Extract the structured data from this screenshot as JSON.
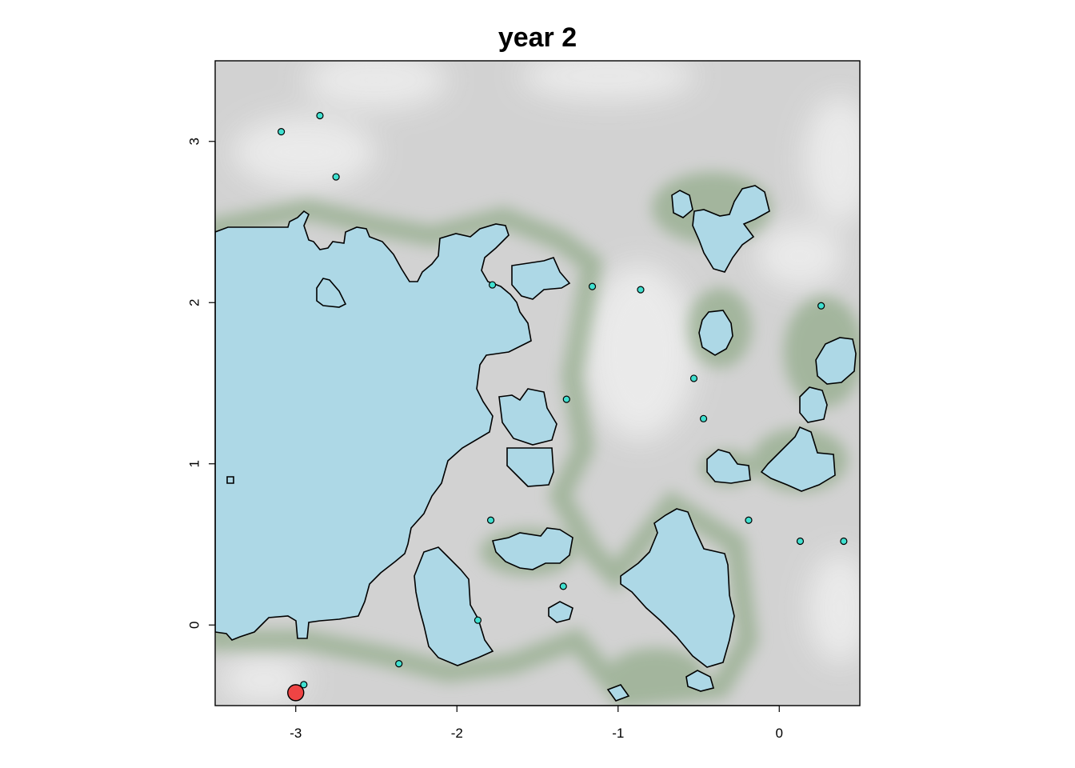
{
  "chart_data": {
    "type": "scatter",
    "title": "year 2",
    "xlabel": "",
    "ylabel": "",
    "xlim": [
      -3.5,
      0.5
    ],
    "ylim": [
      -0.5,
      3.5
    ],
    "xticks": [
      -3,
      -2,
      -1,
      0
    ],
    "xtick_labels": [
      "-3",
      "-2",
      "-1",
      "0"
    ],
    "yticks": [
      0,
      1,
      2,
      3
    ],
    "ytick_labels": [
      "0",
      "1",
      "2",
      "3"
    ],
    "grid": false,
    "legend": "none",
    "colors": {
      "background_raster": "#d0d0d0",
      "light_raster": "#ececec",
      "green_raster": "#7a9a70",
      "water": "#add8e6",
      "water_outline": "#000000",
      "points": "#40e0d0",
      "highlight_point": "#ee4444"
    },
    "series": [
      {
        "marker": "circle",
        "color": "#40e0d0",
        "points": [
          {
            "x": -2.85,
            "y": 3.16
          },
          {
            "x": -3.09,
            "y": 3.06
          },
          {
            "x": -2.75,
            "y": 2.78
          },
          {
            "x": -1.78,
            "y": 2.11
          },
          {
            "x": -1.16,
            "y": 2.1
          },
          {
            "x": -0.86,
            "y": 2.08
          },
          {
            "x": 0.26,
            "y": 1.98
          },
          {
            "x": -0.53,
            "y": 1.53
          },
          {
            "x": -1.32,
            "y": 1.4
          },
          {
            "x": -0.47,
            "y": 1.28
          },
          {
            "x": -1.79,
            "y": 0.65
          },
          {
            "x": -0.19,
            "y": 0.65
          },
          {
            "x": 0.13,
            "y": 0.52
          },
          {
            "x": 0.4,
            "y": 0.52
          },
          {
            "x": -1.34,
            "y": 0.24
          },
          {
            "x": -1.87,
            "y": 0.03
          },
          {
            "x": -2.36,
            "y": -0.24
          },
          {
            "x": -2.95,
            "y": -0.37
          }
        ]
      },
      {
        "marker": "circle",
        "color": "#ee4444",
        "points": [
          {
            "x": -3.0,
            "y": -0.42
          }
        ]
      }
    ]
  }
}
